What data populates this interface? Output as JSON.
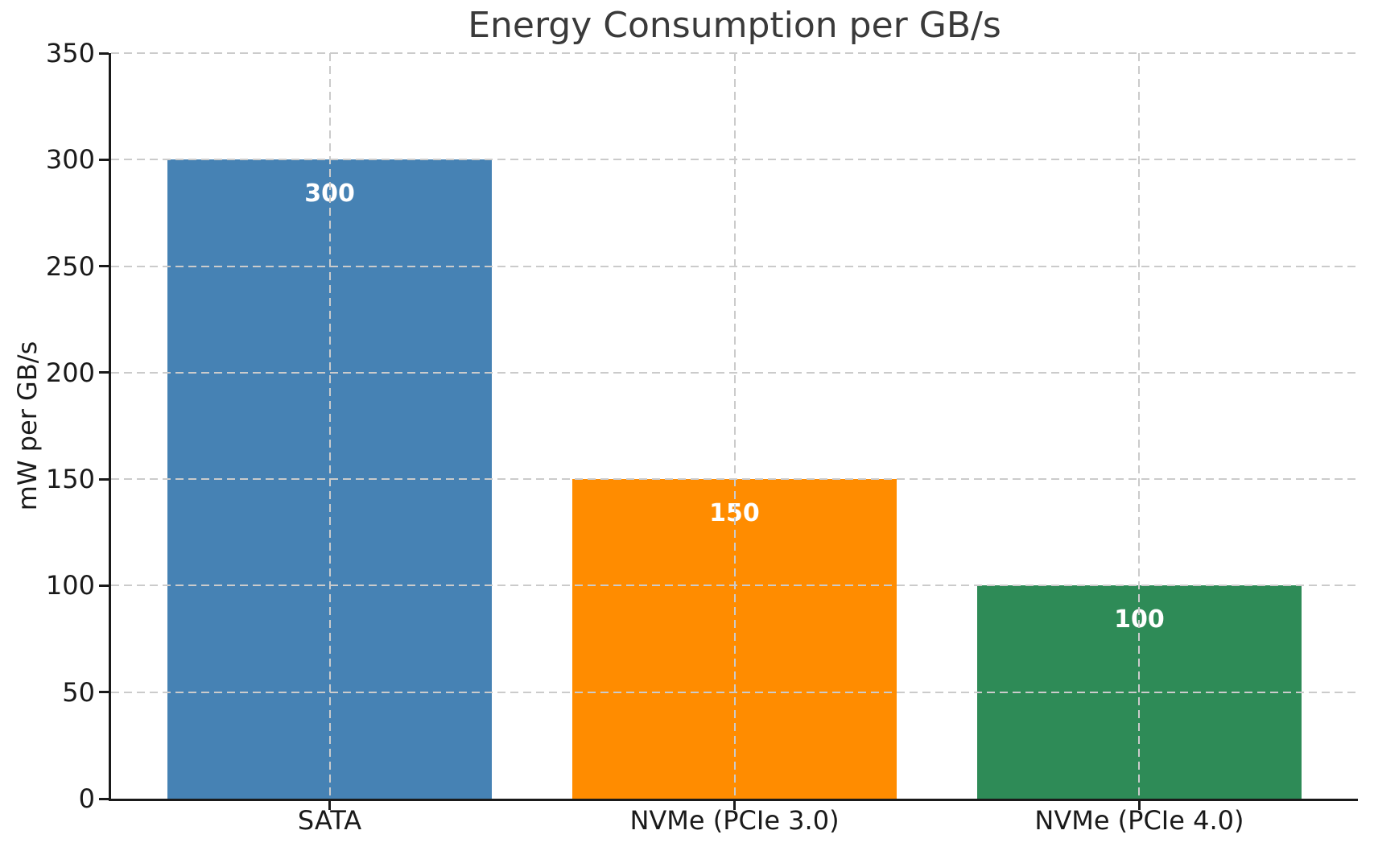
{
  "figure": {
    "background": "#ffffff"
  },
  "chart_data": {
    "type": "bar",
    "title": "Energy Consumption per GB/s",
    "categories": [
      "SATA",
      "NVMe (PCIe 3.0)",
      "NVMe (PCIe 4.0)"
    ],
    "values": [
      300,
      150,
      100
    ],
    "bar_value_labels": [
      "300",
      "150",
      "100"
    ],
    "bar_colors": [
      "#4682B4",
      "#FF8C00",
      "#2E8B57"
    ],
    "xlabel": "",
    "ylabel": "mW per GB/s",
    "ylim": [
      0,
      350
    ],
    "yticks": [
      0,
      50,
      100,
      150,
      200,
      250,
      300,
      350
    ],
    "grid": {
      "style": "dashed",
      "color": "#cbcbcb",
      "axes": "both",
      "drawn_above_bars": true
    },
    "legend": "none",
    "value_label_color": "#ffffff",
    "tick_text_color": "#1a1a1a",
    "title_color": "#3a3a3a",
    "spine_color": "#1a1a1a"
  }
}
